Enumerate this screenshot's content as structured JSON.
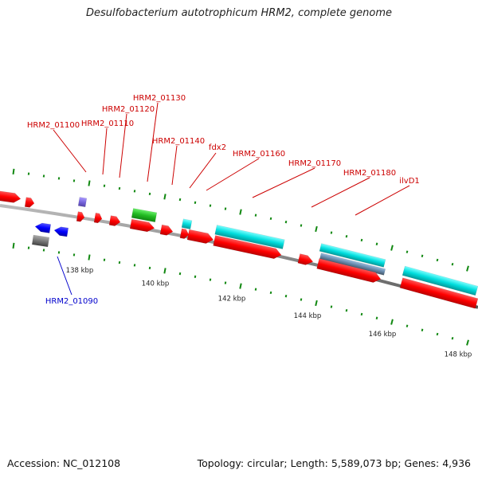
{
  "title": "Desulfobacterium autotrophicum HRM2, complete genome",
  "footer": {
    "accession": "Accession: NC_012108",
    "summary": "Topology: circular; Length: 5,589,073 bp; Genes: 4,936"
  },
  "colors": {
    "forward_gene": "#ff1a1a",
    "reverse_gene": "#1a1aff",
    "forward_label": "#cc0000",
    "reverse_label": "#0000cc",
    "rna": "#22dddd",
    "misc": "#33cc33",
    "other": "#8877dd",
    "pseudo": "#777777",
    "tick": "#118811",
    "backbone": "#888888"
  },
  "scale_labels": [
    "138 kbp",
    "140 kbp",
    "142 kbp",
    "144 kbp",
    "146 kbp",
    "148 kbp"
  ],
  "gene_labels_forward": [
    "HRM2_01100",
    "HRM2_01110",
    "HRM2_01120",
    "HRM2_01130",
    "HRM2_01140",
    "fdx2",
    "HRM2_01160",
    "HRM2_01170",
    "HRM2_01180",
    "ilvD1"
  ],
  "gene_labels_reverse": [
    "HRM2_01090"
  ]
}
